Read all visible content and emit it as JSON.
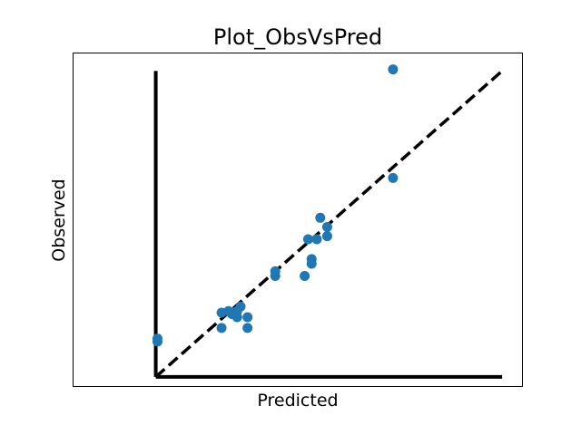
{
  "chart_data": {
    "type": "scatter",
    "title": "Plot_ObsVsPred",
    "xlabel": "Predicted",
    "ylabel": "Observed",
    "xlim": [
      -2.4,
      10.6
    ],
    "ylim": [
      -0.3,
      10.6
    ],
    "ticks_visible": false,
    "grid": false,
    "axes_lines": {
      "x_axis": {
        "from": [
          0,
          0
        ],
        "to": [
          10,
          0
        ]
      },
      "y_axis": {
        "from": [
          0,
          0
        ],
        "to": [
          0,
          10
        ]
      }
    },
    "reference_line": {
      "from": [
        0,
        0
      ],
      "to": [
        10,
        10
      ],
      "style": "dashed",
      "color": "#000000"
    },
    "series": [
      {
        "color": "#1f77b4",
        "points": [
          {
            "x": 0.05,
            "y": 1.25
          },
          {
            "x": 0.05,
            "y": 1.15
          },
          {
            "x": 1.9,
            "y": 2.1
          },
          {
            "x": 2.1,
            "y": 2.15
          },
          {
            "x": 2.2,
            "y": 2.05
          },
          {
            "x": 2.45,
            "y": 2.3
          },
          {
            "x": 2.35,
            "y": 2.15
          },
          {
            "x": 2.65,
            "y": 1.95
          },
          {
            "x": 2.35,
            "y": 1.95
          },
          {
            "x": 1.9,
            "y": 1.6
          },
          {
            "x": 2.65,
            "y": 1.6
          },
          {
            "x": 3.45,
            "y": 3.45
          },
          {
            "x": 3.45,
            "y": 3.3
          },
          {
            "x": 4.3,
            "y": 3.3
          },
          {
            "x": 4.5,
            "y": 3.85
          },
          {
            "x": 4.5,
            "y": 3.7
          },
          {
            "x": 4.4,
            "y": 4.5
          },
          {
            "x": 4.65,
            "y": 4.5
          },
          {
            "x": 4.95,
            "y": 4.6
          },
          {
            "x": 4.95,
            "y": 4.9
          },
          {
            "x": 4.75,
            "y": 5.2
          },
          {
            "x": 6.85,
            "y": 6.5
          },
          {
            "x": 6.85,
            "y": 10.05
          }
        ]
      }
    ]
  }
}
